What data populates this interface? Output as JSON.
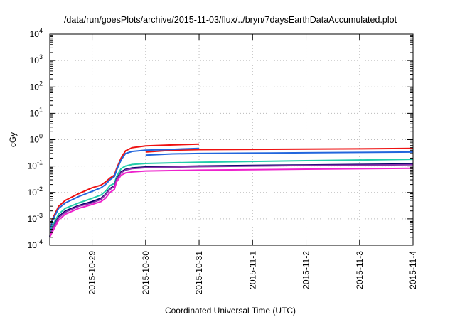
{
  "chart_data": {
    "type": "line",
    "title": "/data/run/goesPlots/archive/2015-11-03/flux/../bryn/7daysEarthDataAccumulated.plot",
    "xlabel": "Coordinated Universal Time (UTC)",
    "ylabel": "cGy",
    "yscale": "log",
    "ylim": [
      0.0001,
      10000
    ],
    "xlim": [
      "2015-10-28T05:00",
      "2015-11-04T00:00"
    ],
    "grid": true,
    "legend": "none",
    "x_ticks": [
      "2015-10-29",
      "2015-10-30",
      "2015-10-31",
      "2015-11-1",
      "2015-11-2",
      "2015-11-3",
      "2015-11-4"
    ],
    "y_ticks": [
      {
        "base": "10",
        "exp": "-4",
        "value": 0.0001
      },
      {
        "base": "10",
        "exp": "-3",
        "value": 0.001
      },
      {
        "base": "10",
        "exp": "-2",
        "value": 0.01
      },
      {
        "base": "10",
        "exp": "-1",
        "value": 0.1
      },
      {
        "base": "10",
        "exp": "0",
        "value": 1
      },
      {
        "base": "10",
        "exp": "1",
        "value": 10
      },
      {
        "base": "10",
        "exp": "2",
        "value": 100
      },
      {
        "base": "10",
        "exp": "3",
        "value": 1000
      },
      {
        "base": "10",
        "exp": "4",
        "value": 10000
      }
    ],
    "series": [
      {
        "color": "#ee1111",
        "segments": [
          [
            [
              "2015-10-28T05:00",
              0.0002
            ],
            [
              "2015-10-28T06:00",
              0.0009
            ],
            [
              "2015-10-28T09:00",
              0.003
            ],
            [
              "2015-10-28T12:00",
              0.005
            ],
            [
              "2015-10-28T18:00",
              0.009
            ],
            [
              "2015-10-29T00:00",
              0.015
            ],
            [
              "2015-10-29T04:00",
              0.019
            ],
            [
              "2015-10-29T06:00",
              0.025
            ],
            [
              "2015-10-29T08:00",
              0.035
            ],
            [
              "2015-10-29T10:00",
              0.045
            ],
            [
              "2015-10-29T11:00",
              0.08
            ],
            [
              "2015-10-29T13:00",
              0.2
            ],
            [
              "2015-10-29T15:00",
              0.38
            ],
            [
              "2015-10-29T18:00",
              0.5
            ],
            [
              "2015-10-30T00:00",
              0.58
            ],
            [
              "2015-10-30T12:00",
              0.63
            ],
            [
              "2015-10-31T00:00",
              0.68
            ]
          ],
          [
            [
              "2015-10-30T00:00",
              0.34
            ],
            [
              "2015-10-30T12:00",
              0.4
            ],
            [
              "2015-10-31T00:00",
              0.42
            ],
            [
              "2015-11-01T00:00",
              0.43
            ],
            [
              "2015-11-02T00:00",
              0.44
            ],
            [
              "2015-11-03T00:00",
              0.45
            ],
            [
              "2015-11-04T00:00",
              0.47
            ]
          ]
        ]
      },
      {
        "color": "#2266dd",
        "segments": [
          [
            [
              "2015-10-28T05:00",
              0.0002
            ],
            [
              "2015-10-28T06:00",
              0.0008
            ],
            [
              "2015-10-28T09:00",
              0.0025
            ],
            [
              "2015-10-28T12:00",
              0.004
            ],
            [
              "2015-10-28T18:00",
              0.007
            ],
            [
              "2015-10-29T00:00",
              0.011
            ],
            [
              "2015-10-29T04:00",
              0.015
            ],
            [
              "2015-10-29T06:00",
              0.02
            ],
            [
              "2015-10-29T08:00",
              0.03
            ],
            [
              "2015-10-29T10:00",
              0.04
            ],
            [
              "2015-10-29T11:00",
              0.07
            ],
            [
              "2015-10-29T13:00",
              0.17
            ],
            [
              "2015-10-29T15:00",
              0.3
            ],
            [
              "2015-10-29T18:00",
              0.36
            ],
            [
              "2015-10-30T00:00",
              0.4
            ],
            [
              "2015-10-30T12:00",
              0.43
            ],
            [
              "2015-10-31T00:00",
              0.47
            ]
          ],
          [
            [
              "2015-10-30T00:00",
              0.26
            ],
            [
              "2015-10-30T12:00",
              0.29
            ],
            [
              "2015-10-31T00:00",
              0.3
            ],
            [
              "2015-11-01T00:00",
              0.31
            ],
            [
              "2015-11-02T00:00",
              0.32
            ],
            [
              "2015-11-03T00:00",
              0.33
            ],
            [
              "2015-11-04T00:00",
              0.34
            ]
          ]
        ]
      },
      {
        "color": "#22ccaa",
        "segments": [
          [
            [
              "2015-10-28T05:00",
              0.0002
            ],
            [
              "2015-10-28T06:00",
              0.0005
            ],
            [
              "2015-10-28T09:00",
              0.0015
            ],
            [
              "2015-10-28T12:00",
              0.0025
            ],
            [
              "2015-10-28T18:00",
              0.004
            ],
            [
              "2015-10-29T00:00",
              0.006
            ],
            [
              "2015-10-29T04:00",
              0.008
            ],
            [
              "2015-10-29T06:00",
              0.011
            ],
            [
              "2015-10-29T08:00",
              0.018
            ],
            [
              "2015-10-29T10:00",
              0.022
            ],
            [
              "2015-10-29T11:00",
              0.04
            ],
            [
              "2015-10-29T13:00",
              0.08
            ],
            [
              "2015-10-29T15:00",
              0.1
            ],
            [
              "2015-10-29T18:00",
              0.115
            ],
            [
              "2015-10-30T00:00",
              0.125
            ],
            [
              "2015-10-31T00:00",
              0.14
            ],
            [
              "2015-11-01T00:00",
              0.15
            ],
            [
              "2015-11-02T00:00",
              0.16
            ],
            [
              "2015-11-03T00:00",
              0.17
            ],
            [
              "2015-11-04T00:00",
              0.18
            ]
          ]
        ]
      },
      {
        "color": "#000066",
        "segments": [
          [
            [
              "2015-10-28T05:00",
              0.0002
            ],
            [
              "2015-10-28T06:00",
              0.0004
            ],
            [
              "2015-10-28T09:00",
              0.0012
            ],
            [
              "2015-10-28T12:00",
              0.002
            ],
            [
              "2015-10-28T18:00",
              0.0032
            ],
            [
              "2015-10-29T00:00",
              0.0045
            ],
            [
              "2015-10-29T04:00",
              0.006
            ],
            [
              "2015-10-29T06:00",
              0.0085
            ],
            [
              "2015-10-29T08:00",
              0.014
            ],
            [
              "2015-10-29T10:00",
              0.018
            ],
            [
              "2015-10-29T11:00",
              0.033
            ],
            [
              "2015-10-29T13:00",
              0.06
            ],
            [
              "2015-10-29T15:00",
              0.075
            ],
            [
              "2015-10-29T18:00",
              0.085
            ],
            [
              "2015-10-30T00:00",
              0.092
            ],
            [
              "2015-10-31T00:00",
              0.1
            ],
            [
              "2015-11-01T00:00",
              0.105
            ],
            [
              "2015-11-02T00:00",
              0.11
            ],
            [
              "2015-11-03T00:00",
              0.115
            ],
            [
              "2015-11-04T00:00",
              0.12
            ]
          ]
        ]
      },
      {
        "color": "#8833aa",
        "segments": [
          [
            [
              "2015-10-28T05:00",
              0.0002
            ],
            [
              "2015-10-28T06:00",
              0.0004
            ],
            [
              "2015-10-28T09:00",
              0.0011
            ],
            [
              "2015-10-28T12:00",
              0.0018
            ],
            [
              "2015-10-28T18:00",
              0.003
            ],
            [
              "2015-10-29T00:00",
              0.004
            ],
            [
              "2015-10-29T04:00",
              0.0055
            ],
            [
              "2015-10-29T06:00",
              0.008
            ],
            [
              "2015-10-29T08:00",
              0.013
            ],
            [
              "2015-10-29T10:00",
              0.017
            ],
            [
              "2015-10-29T11:00",
              0.031
            ],
            [
              "2015-10-29T13:00",
              0.056
            ],
            [
              "2015-10-29T15:00",
              0.07
            ],
            [
              "2015-10-29T18:00",
              0.08
            ],
            [
              "2015-10-30T00:00",
              0.087
            ],
            [
              "2015-10-31T00:00",
              0.095
            ],
            [
              "2015-11-01T00:00",
              0.1
            ],
            [
              "2015-11-02T00:00",
              0.105
            ],
            [
              "2015-11-03T00:00",
              0.108
            ],
            [
              "2015-11-04T00:00",
              0.112
            ]
          ]
        ]
      },
      {
        "color": "#ee22cc",
        "segments": [
          [
            [
              "2015-10-28T05:00",
              0.0002
            ],
            [
              "2015-10-28T06:00",
              0.0003
            ],
            [
              "2015-10-28T09:00",
              0.0009
            ],
            [
              "2015-10-28T12:00",
              0.0015
            ],
            [
              "2015-10-28T18:00",
              0.0025
            ],
            [
              "2015-10-29T00:00",
              0.0035
            ],
            [
              "2015-10-29T04:00",
              0.0045
            ],
            [
              "2015-10-29T06:00",
              0.006
            ],
            [
              "2015-10-29T08:00",
              0.01
            ],
            [
              "2015-10-29T10:00",
              0.013
            ],
            [
              "2015-10-29T11:00",
              0.025
            ],
            [
              "2015-10-29T13:00",
              0.045
            ],
            [
              "2015-10-29T15:00",
              0.055
            ],
            [
              "2015-10-29T18:00",
              0.06
            ],
            [
              "2015-10-30T00:00",
              0.065
            ],
            [
              "2015-10-31T00:00",
              0.07
            ],
            [
              "2015-11-01T00:00",
              0.073
            ],
            [
              "2015-11-02T00:00",
              0.076
            ],
            [
              "2015-11-03T00:00",
              0.079
            ],
            [
              "2015-11-04T00:00",
              0.082
            ]
          ]
        ]
      }
    ]
  }
}
